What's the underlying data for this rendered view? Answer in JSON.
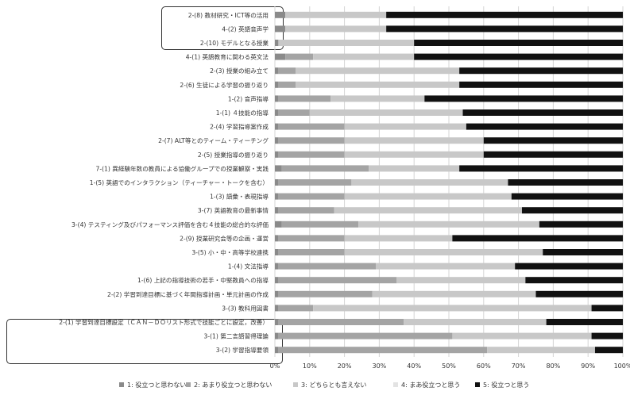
{
  "chart_data": {
    "type": "bar",
    "orientation": "horizontal",
    "stacked": true,
    "title": "",
    "xlabel": "",
    "ylabel": "",
    "xlim": [
      0,
      100
    ],
    "x_ticks": [
      "0%",
      "10%",
      "20%",
      "30%",
      "40%",
      "50%",
      "60%",
      "70%",
      "80%",
      "90%",
      "100%"
    ],
    "grid": "vertical",
    "legend_position": "bottom",
    "categories": [
      "2-(8) 教材研究・ICT等の活用",
      "4-(2) 英語音声学",
      "2-(10) モデルとなる授業",
      "4-(1) 英語教育に関わる英文法",
      "2-(3) 授業の組み立て",
      "2-(6) 生徒による学習の振り返り",
      "1-(2) 音声指導",
      "1-(1) ４技能の指導",
      "2-(4) 学習指導案作成",
      "2-(7) ALT等とのティーム・ティーチング",
      "2-(5) 授業指導の振り返り",
      "7-(1) 異経験年数の教員による協働グループでの授業観察・実践",
      "1-(5) 英語でのインタラクション（ティーチャー・トークを含む）",
      "1-(3) 語彙・表現指導",
      "3-(7) 英語教育の最新事情",
      "3-(4) テスティング及びパフォーマンス評価を含む４技能の総合的な評価",
      "2-(9) 授業研究会等の企画・運営",
      "3-(5) 小・中・高等学校連携",
      "1-(4) 文法指導",
      "1-(6) 上記の指導技術の若手・中堅教員への指導",
      "2-(2) 学習到達目標に基づく年間指導計画・単元計画の作成",
      "3-(3) 教科用図書",
      "2-(1) 学習到達目標設定（ＣＡＮ－ＤＯリスト形式で技能ごとに設定，改善）",
      "3-(1) 第二言語習得理論",
      "3-(2) 学習指導要領"
    ],
    "series": [
      {
        "name": "1: 役立つと思わない",
        "color": "#8a8a8a",
        "values": [
          3,
          3,
          1,
          3,
          1,
          1,
          1,
          1,
          1,
          1,
          1,
          2,
          1,
          1,
          1,
          2,
          1,
          1,
          1,
          1,
          1,
          1,
          1,
          1,
          1
        ]
      },
      {
        "name": "2: あまり役立つと思わない",
        "color": "#a4a4a4",
        "values": [
          0,
          0,
          0,
          8,
          5,
          5,
          15,
          9,
          19,
          19,
          19,
          25,
          21,
          19,
          16,
          22,
          19,
          19,
          28,
          34,
          27,
          10,
          36,
          50,
          60
        ]
      },
      {
        "name": "3: どちらとも言えない",
        "color": "#c8c8c8",
        "values": [
          29,
          29,
          39,
          29,
          47,
          47,
          27,
          44,
          35,
          40,
          40,
          26,
          45,
          48,
          54,
          52,
          31,
          57,
          40,
          37,
          47,
          80,
          41,
          40,
          31
        ]
      },
      {
        "name": "4: まあ役立つと思う",
        "color": "#e3e3e3",
        "values": [
          0,
          0,
          0,
          0,
          0,
          0,
          0,
          0,
          0,
          0,
          0,
          0,
          0,
          0,
          0,
          0,
          0,
          0,
          0,
          0,
          0,
          0,
          0,
          0,
          0
        ]
      },
      {
        "name": "5: 役立つと思う",
        "color": "#111111",
        "values": [
          68,
          68,
          60,
          60,
          47,
          47,
          57,
          46,
          45,
          40,
          40,
          47,
          33,
          32,
          29,
          24,
          49,
          23,
          31,
          28,
          25,
          9,
          22,
          9,
          8
        ]
      }
    ]
  }
}
